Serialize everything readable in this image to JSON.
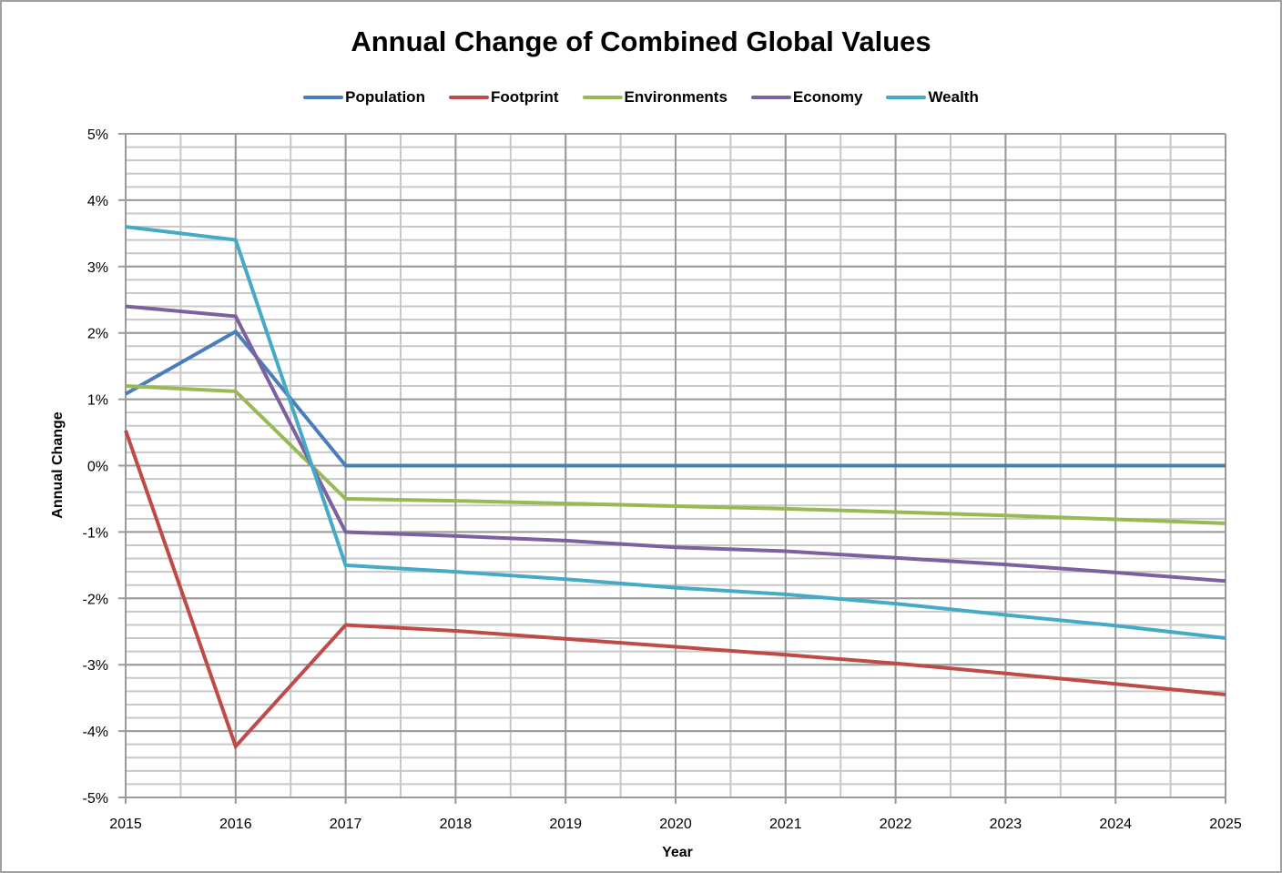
{
  "chart_data": {
    "type": "line",
    "title": "Annual Change of Combined Global Values",
    "xlabel": "Year",
    "ylabel": "Annual Change",
    "x": [
      2015,
      2016,
      2017,
      2018,
      2019,
      2020,
      2021,
      2022,
      2023,
      2024,
      2025
    ],
    "xlim": [
      2015,
      2025
    ],
    "ylim": [
      -5,
      5
    ],
    "y_unit": "%",
    "y_ticks": [
      "5%",
      "4%",
      "3%",
      "2%",
      "1%",
      "0%",
      "-1%",
      "-2%",
      "-3%",
      "-4%",
      "-5%"
    ],
    "y_tick_values": [
      5,
      4,
      3,
      2,
      1,
      0,
      -1,
      -2,
      -3,
      -4,
      -5
    ],
    "x_ticks": [
      "2015",
      "2016",
      "2017",
      "2018",
      "2019",
      "2020",
      "2021",
      "2022",
      "2023",
      "2024",
      "2025"
    ],
    "y_minor_step": 0.2,
    "x_minor_step": 0.5,
    "grid": true,
    "legend_position": "top",
    "series": [
      {
        "name": "Population",
        "color": "#4a7ebb",
        "values": [
          1.08,
          2.02,
          0.0,
          0.0,
          0.0,
          0.0,
          0.0,
          0.0,
          0.0,
          0.0,
          0.0
        ]
      },
      {
        "name": "Footprint",
        "color": "#be4b48",
        "values": [
          0.53,
          -4.23,
          -2.4,
          -2.49,
          -2.61,
          -2.73,
          -2.85,
          -2.98,
          -3.13,
          -3.29,
          -3.45
        ]
      },
      {
        "name": "Environments",
        "color": "#98b954",
        "values": [
          1.2,
          1.12,
          -0.5,
          -0.53,
          -0.57,
          -0.61,
          -0.65,
          -0.7,
          -0.75,
          -0.81,
          -0.87
        ]
      },
      {
        "name": "Economy",
        "color": "#7d60a0",
        "values": [
          2.4,
          2.25,
          -1.0,
          -1.06,
          -1.13,
          -1.23,
          -1.29,
          -1.39,
          -1.49,
          -1.61,
          -1.74
        ]
      },
      {
        "name": "Wealth",
        "color": "#46aac5",
        "values": [
          3.6,
          3.4,
          -1.5,
          -1.6,
          -1.71,
          -1.84,
          -1.94,
          -2.08,
          -2.25,
          -2.41,
          -2.6
        ]
      }
    ]
  }
}
